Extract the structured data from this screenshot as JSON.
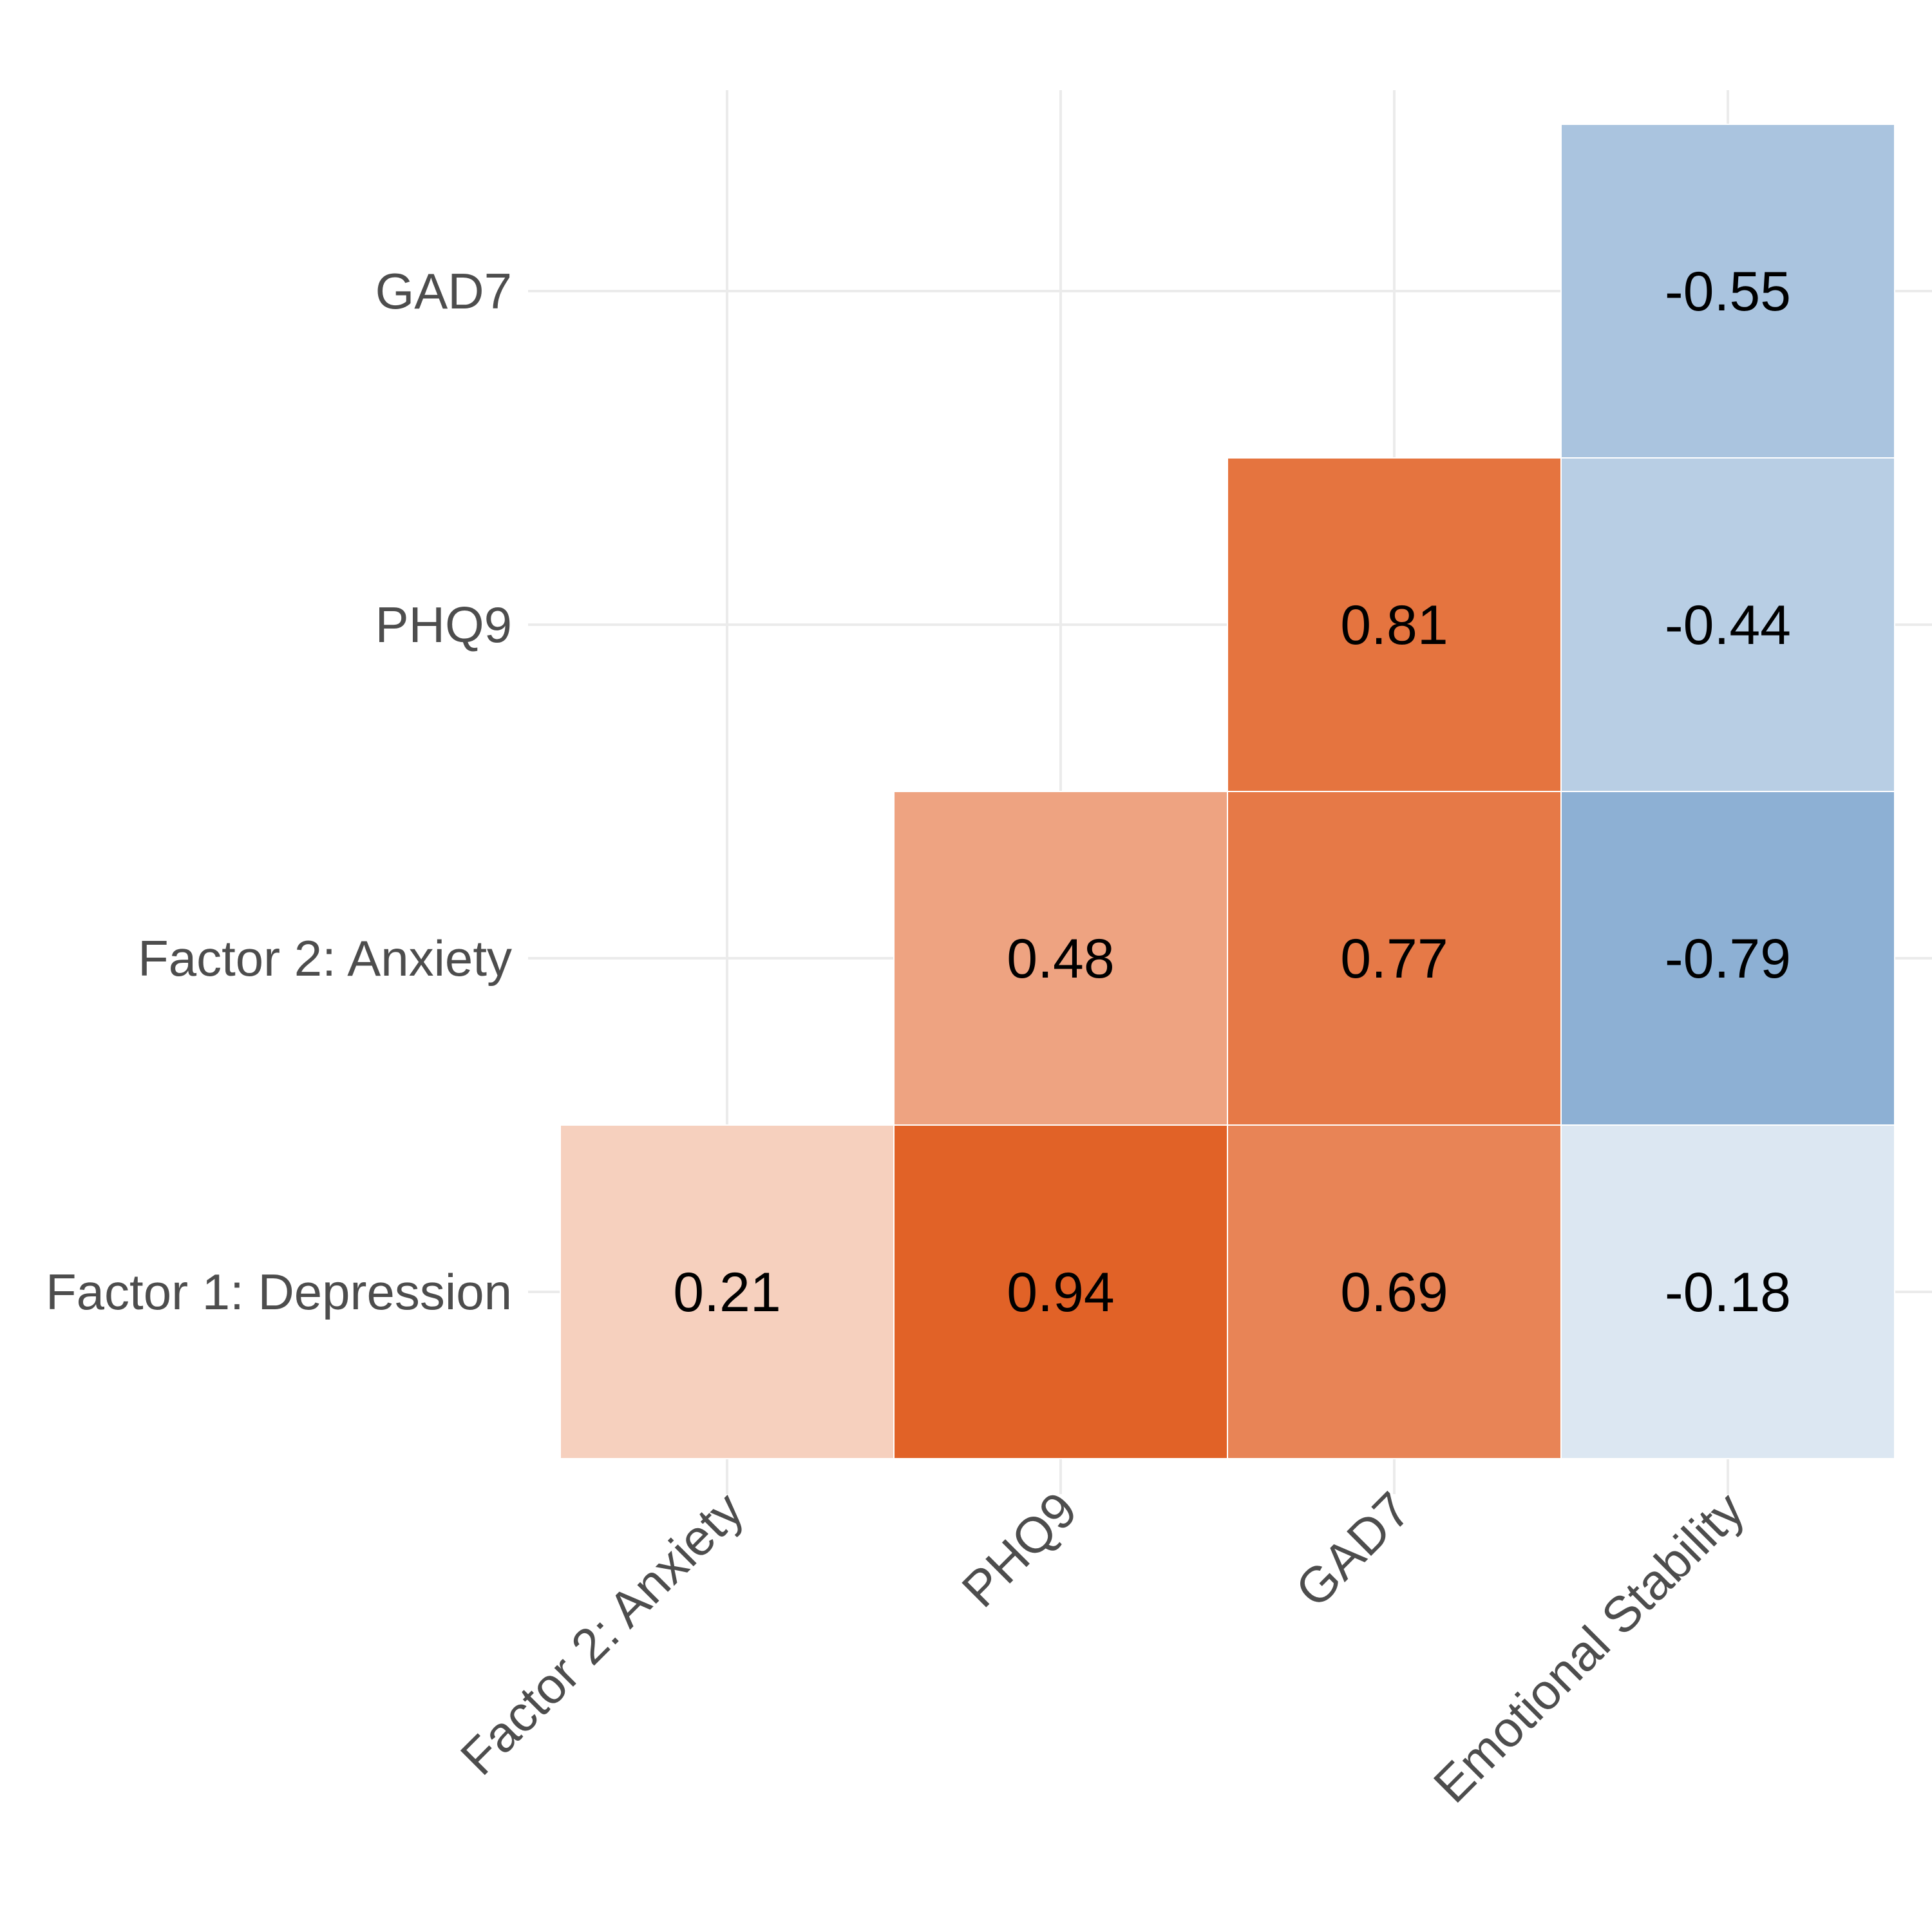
{
  "chart_data": {
    "type": "heatmap",
    "title": "",
    "xlabel": "",
    "ylabel": "",
    "x_categories": [
      "Factor 2: Anxiety",
      "PHQ9",
      "GAD7",
      "Emotional Stability"
    ],
    "y_categories": [
      "Factor 1: Depression",
      "Factor 2: Anxiety",
      "PHQ9",
      "GAD7"
    ],
    "cells": [
      {
        "x": "Factor 2: Anxiety",
        "y": "Factor 1: Depression",
        "value": 0.21,
        "label": "0.21"
      },
      {
        "x": "PHQ9",
        "y": "Factor 1: Depression",
        "value": 0.94,
        "label": "0.94"
      },
      {
        "x": "GAD7",
        "y": "Factor 1: Depression",
        "value": 0.69,
        "label": "0.69"
      },
      {
        "x": "Emotional Stability",
        "y": "Factor 1: Depression",
        "value": -0.18,
        "label": "-0.18"
      },
      {
        "x": "PHQ9",
        "y": "Factor 2: Anxiety",
        "value": 0.48,
        "label": "0.48"
      },
      {
        "x": "GAD7",
        "y": "Factor 2: Anxiety",
        "value": 0.77,
        "label": "0.77"
      },
      {
        "x": "Emotional Stability",
        "y": "Factor 2: Anxiety",
        "value": -0.79,
        "label": "-0.79"
      },
      {
        "x": "GAD7",
        "y": "PHQ9",
        "value": 0.81,
        "label": "0.81"
      },
      {
        "x": "Emotional Stability",
        "y": "PHQ9",
        "value": -0.44,
        "label": "-0.44"
      },
      {
        "x": "Emotional Stability",
        "y": "GAD7",
        "value": -0.55,
        "label": "-0.55"
      }
    ],
    "value_range": [
      -1,
      1
    ],
    "colors": {
      "negative_high": "#2166ac",
      "neutral": "#ffffff",
      "positive_high": "#e05a1c",
      "grid": "#ebebeb",
      "tick_text": "#4d4d4d",
      "cell_text": "#000000"
    },
    "grid": true,
    "legend": "none"
  }
}
